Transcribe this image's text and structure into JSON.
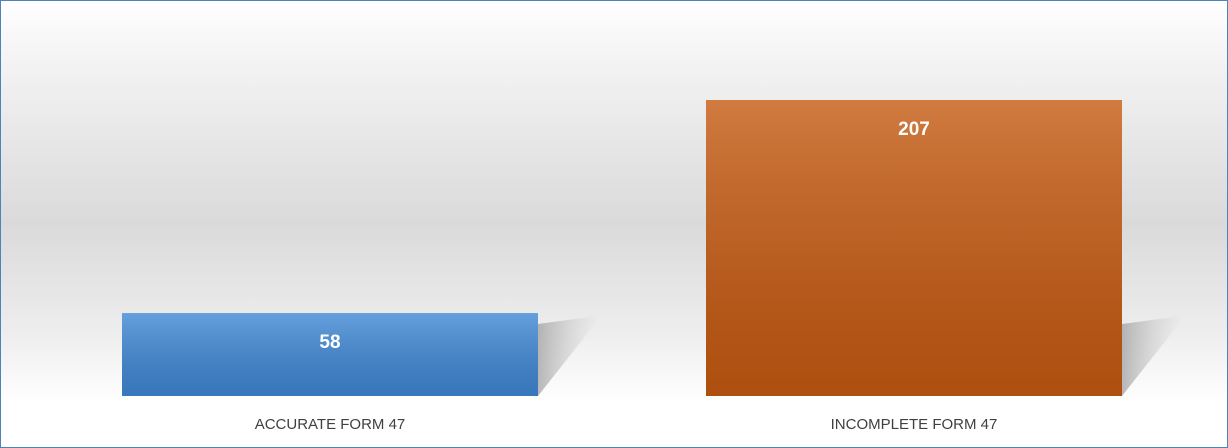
{
  "chart_data": {
    "type": "bar",
    "categories": [
      "ACCURATE FORM 47",
      "INCOMPLETE FORM 47"
    ],
    "values": [
      58,
      207
    ],
    "colors": [
      "#3f87d4",
      "#c55a11"
    ]
  }
}
